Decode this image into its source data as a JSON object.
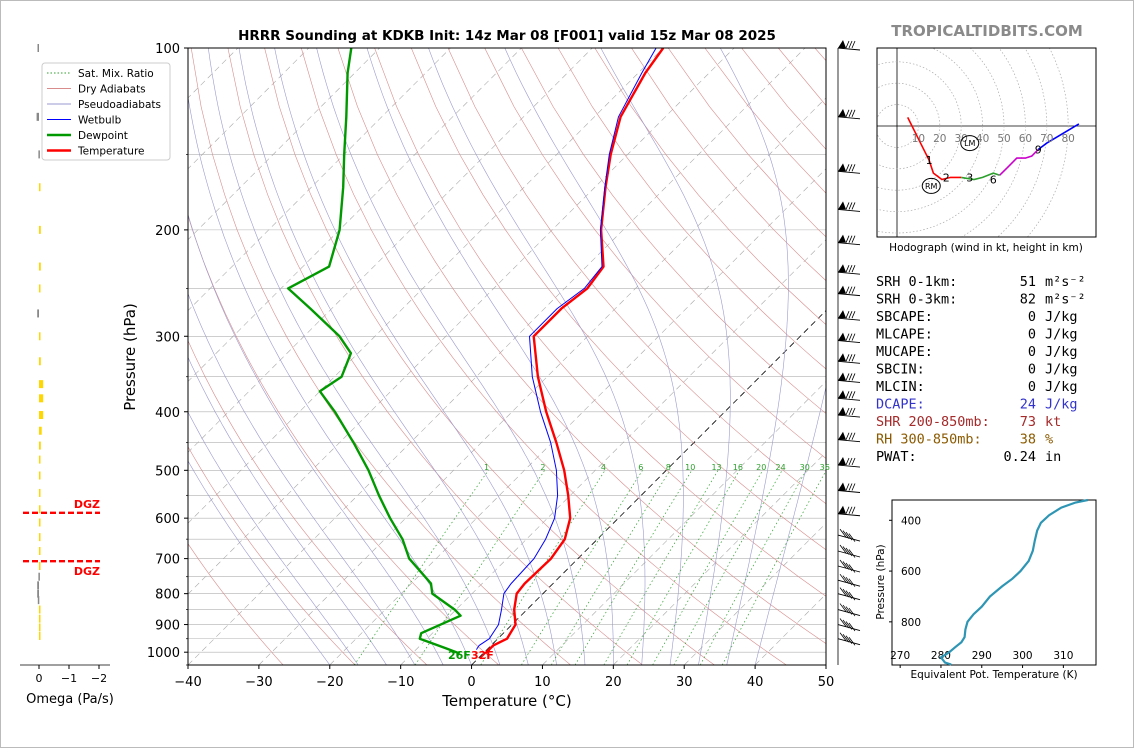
{
  "title": "HRRR Sounding at KDKB Init: 14z Mar 08 [F001] valid 15z Mar 08 2025",
  "brand": "TROPICALTIDBITS.COM",
  "chart_data": [
    {
      "id": "skewt",
      "type": "line",
      "title": "HRRR Sounding at KDKB Init: 14z Mar 08 [F001] valid 15z Mar 08 2025",
      "xlabel": "Temperature (°C)",
      "ylabel": "Pressure (hPa)",
      "x_ticks": [
        "−40",
        "−30",
        "−20",
        "−10",
        "0",
        "10",
        "20",
        "30",
        "40",
        "50"
      ],
      "x_tick_values": [
        -40,
        -30,
        -20,
        -10,
        0,
        10,
        20,
        30,
        40,
        50
      ],
      "y_tick_values": [
        100,
        200,
        300,
        400,
        500,
        600,
        700,
        800,
        900,
        1000
      ],
      "xlim": [
        -40,
        50
      ],
      "ylim": [
        1050,
        100
      ],
      "y_scale": "log",
      "skew_note": "isotherms skewed 45°",
      "mixing_ratio_labels": [
        "1",
        "2",
        "4",
        "6",
        "8",
        "10",
        "13",
        "16",
        "20",
        "24",
        "30",
        "36"
      ],
      "surface_temp_label": "32F",
      "surface_dew_label": "26F",
      "legend": [
        {
          "name": "Sat. Mix. Ratio",
          "color": "#2ca02c",
          "style": "dotted"
        },
        {
          "name": "Dry Adiabats",
          "color": "#d98c8c",
          "style": "solid"
        },
        {
          "name": "Pseudoadiabats",
          "color": "#9a9ad0",
          "style": "solid"
        },
        {
          "name": "Wetbulb",
          "color": "#0000ff",
          "style": "solid"
        },
        {
          "name": "Dewpoint",
          "color": "#009900",
          "style": "solid"
        },
        {
          "name": "Temperature",
          "color": "#ff0000",
          "style": "solid"
        }
      ],
      "legend_placement": "top-left",
      "series": [
        {
          "name": "Temperature",
          "color": "#ff0000",
          "points": [
            [
              1005,
              0.3
            ],
            [
              975,
              0.3
            ],
            [
              950,
              1.3
            ],
            [
              900,
              0.5
            ],
            [
              850,
              -1.8
            ],
            [
              800,
              -3.7
            ],
            [
              770,
              -4.0
            ],
            [
              700,
              -3.8
            ],
            [
              650,
              -4.6
            ],
            [
              600,
              -6.8
            ],
            [
              550,
              -10.3
            ],
            [
              500,
              -14.4
            ],
            [
              450,
              -19.4
            ],
            [
              400,
              -25.2
            ],
            [
              350,
              -31.3
            ],
            [
              300,
              -37.6
            ],
            [
              270,
              -37.6
            ],
            [
              250,
              -36.8
            ],
            [
              230,
              -37.6
            ],
            [
              200,
              -43.1
            ],
            [
              170,
              -48.5
            ],
            [
              150,
              -52.4
            ],
            [
              130,
              -56.3
            ],
            [
              110,
              -59.0
            ],
            [
              100,
              -60.0
            ]
          ]
        },
        {
          "name": "Wetbulb",
          "color": "#0000ff",
          "points": [
            [
              990,
              -1.5
            ],
            [
              975,
              -1.7
            ],
            [
              950,
              -1.2
            ],
            [
              900,
              -1.9
            ],
            [
              850,
              -3.6
            ],
            [
              800,
              -5.5
            ],
            [
              770,
              -5.9
            ],
            [
              700,
              -6.2
            ],
            [
              650,
              -7.3
            ],
            [
              600,
              -9.0
            ],
            [
              550,
              -11.8
            ],
            [
              500,
              -15.5
            ],
            [
              450,
              -20.2
            ],
            [
              400,
              -26.0
            ],
            [
              350,
              -32.1
            ],
            [
              300,
              -38.2
            ],
            [
              270,
              -38.2
            ],
            [
              250,
              -37.2
            ],
            [
              230,
              -37.8
            ],
            [
              200,
              -43.2
            ],
            [
              170,
              -48.6
            ],
            [
              150,
              -52.6
            ],
            [
              130,
              -56.6
            ],
            [
              110,
              -59.5
            ],
            [
              100,
              -61.0
            ]
          ]
        },
        {
          "name": "Dewpoint",
          "color": "#009900",
          "points": [
            [
              1005,
              -3.3
            ],
            [
              985,
              -6.0
            ],
            [
              950,
              -11.0
            ],
            [
              930,
              -11.6
            ],
            [
              870,
              -8.5
            ],
            [
              850,
              -10.2
            ],
            [
              800,
              -15.6
            ],
            [
              770,
              -17.2
            ],
            [
              700,
              -23.8
            ],
            [
              650,
              -27.5
            ],
            [
              600,
              -32.2
            ],
            [
              550,
              -37.0
            ],
            [
              500,
              -42.0
            ],
            [
              450,
              -48.0
            ],
            [
              400,
              -55.0
            ],
            [
              370,
              -60.0
            ],
            [
              350,
              -59.0
            ],
            [
              320,
              -61.0
            ],
            [
              300,
              -65.0
            ],
            [
              270,
              -73.0
            ],
            [
              250,
              -79.0
            ],
            [
              230,
              -76.3
            ],
            [
              200,
              -80.0
            ],
            [
              170,
              -85.5
            ],
            [
              150,
              -90.0
            ],
            [
              130,
              -95.0
            ],
            [
              110,
              -101.0
            ],
            [
              100,
              -104.0
            ]
          ]
        }
      ]
    },
    {
      "id": "omega",
      "type": "bar",
      "xlabel": "Omega (Pa/s)",
      "x_ticks": [
        "0",
        "−1",
        "−2"
      ],
      "x_tick_values": [
        0,
        -1,
        -2
      ],
      "dgz_label": "DGZ",
      "dgz_pressures": [
        588,
        707
      ],
      "values_pa_per_s": [
        [
          100,
          0.05,
          "#888888"
        ],
        [
          130,
          0.08,
          "#888888"
        ],
        [
          150,
          0.02,
          "#888888"
        ],
        [
          170,
          -0.04,
          "#ffd700"
        ],
        [
          200,
          -0.06,
          "#ffd700"
        ],
        [
          230,
          -0.06,
          "#ffd700"
        ],
        [
          250,
          -0.02,
          "#ffd700"
        ],
        [
          275,
          0.06,
          "#888888"
        ],
        [
          300,
          -0.03,
          "#ffd700"
        ],
        [
          330,
          -0.06,
          "#ffd700"
        ],
        [
          360,
          -0.14,
          "#ffd700"
        ],
        [
          380,
          -0.14,
          "#ffd700"
        ],
        [
          405,
          -0.14,
          "#ffd700"
        ],
        [
          430,
          -0.09,
          "#ffd700"
        ],
        [
          455,
          -0.06,
          "#ffd700"
        ],
        [
          480,
          -0.03,
          "#ffd700"
        ],
        [
          510,
          -0.03,
          "#ffd700"
        ],
        [
          545,
          -0.03,
          "#ffd700"
        ],
        [
          580,
          -0.05,
          "#ffd700"
        ],
        [
          610,
          -0.05,
          "#ffd700"
        ],
        [
          645,
          -0.03,
          "#ffd700"
        ],
        [
          680,
          -0.02,
          "#ffd700"
        ],
        [
          720,
          -0.01,
          "#ffd700"
        ],
        [
          750,
          0.02,
          "#888888"
        ],
        [
          775,
          0.06,
          "#888888"
        ],
        [
          800,
          0.06,
          "#888888"
        ],
        [
          820,
          0.04,
          "#888888"
        ],
        [
          850,
          -0.01,
          "#ffd700"
        ],
        [
          880,
          -0.02,
          "#ffd700"
        ],
        [
          910,
          -0.02,
          "#ffd700"
        ],
        [
          940,
          -0.01,
          "#ffd700"
        ]
      ]
    },
    {
      "id": "hodograph",
      "type": "line",
      "caption": "Hodograph (wind in kt, height in km)",
      "ring_labels": [
        "10",
        "20",
        "30",
        "40",
        "50",
        "60",
        "70",
        "80"
      ],
      "height_labels": [
        "1",
        "2",
        "3",
        "6",
        "9"
      ],
      "storm_motion_labels": [
        "LM",
        "RM"
      ],
      "segments": [
        {
          "color": "#ff0000",
          "points": [
            [
              5,
              4
            ],
            [
              10,
              -6
            ],
            [
              15,
              -16
            ],
            [
              17,
              -22
            ],
            [
              21,
              -25
            ],
            [
              25,
              -24
            ],
            [
              30,
              -24
            ]
          ]
        },
        {
          "color": "#2ca02c",
          "points": [
            [
              30,
              -24
            ],
            [
              36,
              -25
            ],
            [
              40,
              -24
            ],
            [
              45,
              -22
            ],
            [
              48,
              -23
            ]
          ]
        },
        {
          "color": "#cc00cc",
          "points": [
            [
              48,
              -23
            ],
            [
              52,
              -19
            ],
            [
              56,
              -15
            ],
            [
              60,
              -15
            ],
            [
              63,
              -14
            ],
            [
              66,
              -11
            ]
          ]
        },
        {
          "color": "#0000ff",
          "points": [
            [
              66,
              -11
            ],
            [
              70,
              -8
            ],
            [
              75,
              -5
            ],
            [
              80,
              -2
            ],
            [
              85,
              1
            ]
          ]
        }
      ],
      "height_marks": [
        {
          "label": "1",
          "u": 15,
          "v": -16
        },
        {
          "label": "2",
          "u": 23,
          "v": -24
        },
        {
          "label": "3",
          "u": 34,
          "v": -24
        },
        {
          "label": "6",
          "u": 45,
          "v": -25
        },
        {
          "label": "9",
          "u": 66,
          "v": -11
        }
      ],
      "storm_motion": [
        {
          "label": "LM",
          "u": 34,
          "v": -8
        },
        {
          "label": "RM",
          "u": 16,
          "v": -28
        }
      ]
    },
    {
      "id": "theta_e",
      "type": "line",
      "xlabel": "Equivalent Pot. Temperature (K)",
      "ylabel": "Pressure (hPa)",
      "x_ticks": [
        "270",
        "280",
        "290",
        "300",
        "310"
      ],
      "x_tick_values": [
        270,
        280,
        290,
        300,
        310
      ],
      "y_ticks": [
        "400",
        "600",
        "800"
      ],
      "y_tick_values": [
        400,
        600,
        800
      ],
      "xlim": [
        268,
        318
      ],
      "ylim": [
        970,
        320
      ],
      "series": [
        {
          "color": "#2e96b4",
          "points": [
            [
              968,
              282.5
            ],
            [
              960,
              281.0
            ],
            [
              940,
              280.0
            ],
            [
              920,
              282.0
            ],
            [
              900,
              283.5
            ],
            [
              880,
              285.0
            ],
            [
              860,
              285.8
            ],
            [
              830,
              286.0
            ],
            [
              800,
              286.5
            ],
            [
              770,
              288.0
            ],
            [
              740,
              290.0
            ],
            [
              700,
              292.0
            ],
            [
              660,
              295.0
            ],
            [
              630,
              297.5
            ],
            [
              600,
              299.5
            ],
            [
              560,
              301.5
            ],
            [
              520,
              302.5
            ],
            [
              480,
              303.0
            ],
            [
              440,
              303.6
            ],
            [
              410,
              304.5
            ],
            [
              380,
              306.5
            ],
            [
              350,
              309.5
            ],
            [
              330,
              313.0
            ],
            [
              320,
              316.0
            ]
          ]
        }
      ]
    }
  ],
  "winds": {
    "barbs": [
      {
        "p": 100,
        "symbol": "▲"
      },
      {
        "p": 130,
        "symbol": "▲"
      },
      {
        "p": 160,
        "symbol": "▲"
      },
      {
        "p": 185,
        "symbol": "▲"
      },
      {
        "p": 210,
        "symbol": "▲"
      },
      {
        "p": 235,
        "symbol": "▲"
      },
      {
        "p": 255,
        "symbol": "▲"
      },
      {
        "p": 280,
        "symbol": "▲"
      },
      {
        "p": 305,
        "symbol": "▲"
      },
      {
        "p": 330,
        "symbol": "▲"
      },
      {
        "p": 355,
        "symbol": "▲"
      },
      {
        "p": 380,
        "symbol": "▲"
      },
      {
        "p": 405,
        "symbol": "▲"
      },
      {
        "p": 445,
        "symbol": "▲"
      },
      {
        "p": 490,
        "symbol": "▲"
      },
      {
        "p": 540,
        "symbol": "▲"
      },
      {
        "p": 590,
        "symbol": "▲"
      },
      {
        "p": 640,
        "symbol": ""
      },
      {
        "p": 680,
        "symbol": ""
      },
      {
        "p": 720,
        "symbol": ""
      },
      {
        "p": 760,
        "symbol": ""
      },
      {
        "p": 800,
        "symbol": ""
      },
      {
        "p": 850,
        "symbol": ""
      },
      {
        "p": 900,
        "symbol": ""
      },
      {
        "p": 950,
        "symbol": ""
      }
    ]
  },
  "params": [
    {
      "label": "SRH 0-1km:",
      "value": "51",
      "unit": "m²s⁻²",
      "color": "#000000"
    },
    {
      "label": "SRH 0-3km:",
      "value": "82",
      "unit": "m²s⁻²",
      "color": "#000000"
    },
    {
      "label": "SBCAPE:",
      "value": "0",
      "unit": "J/kg",
      "color": "#000000"
    },
    {
      "label": "MLCAPE:",
      "value": "0",
      "unit": "J/kg",
      "color": "#000000"
    },
    {
      "label": "MUCAPE:",
      "value": "0",
      "unit": "J/kg",
      "color": "#000000"
    },
    {
      "label": "SBCIN:",
      "value": "0",
      "unit": "J/kg",
      "color": "#000000"
    },
    {
      "label": "MLCIN:",
      "value": "0",
      "unit": "J/kg",
      "color": "#000000"
    },
    {
      "label": "DCAPE:",
      "value": "24",
      "unit": "J/kg",
      "color": "#3333cc"
    },
    {
      "label": "SHR 200-850mb:",
      "value": "73",
      "unit": "kt",
      "color": "#a52a2a"
    },
    {
      "label": "RH 300-850mb:",
      "value": "38",
      "unit": "%",
      "color": "#8b5a00"
    },
    {
      "label": "PWAT:",
      "value": "0.24",
      "unit": "in",
      "color": "#000000"
    }
  ]
}
